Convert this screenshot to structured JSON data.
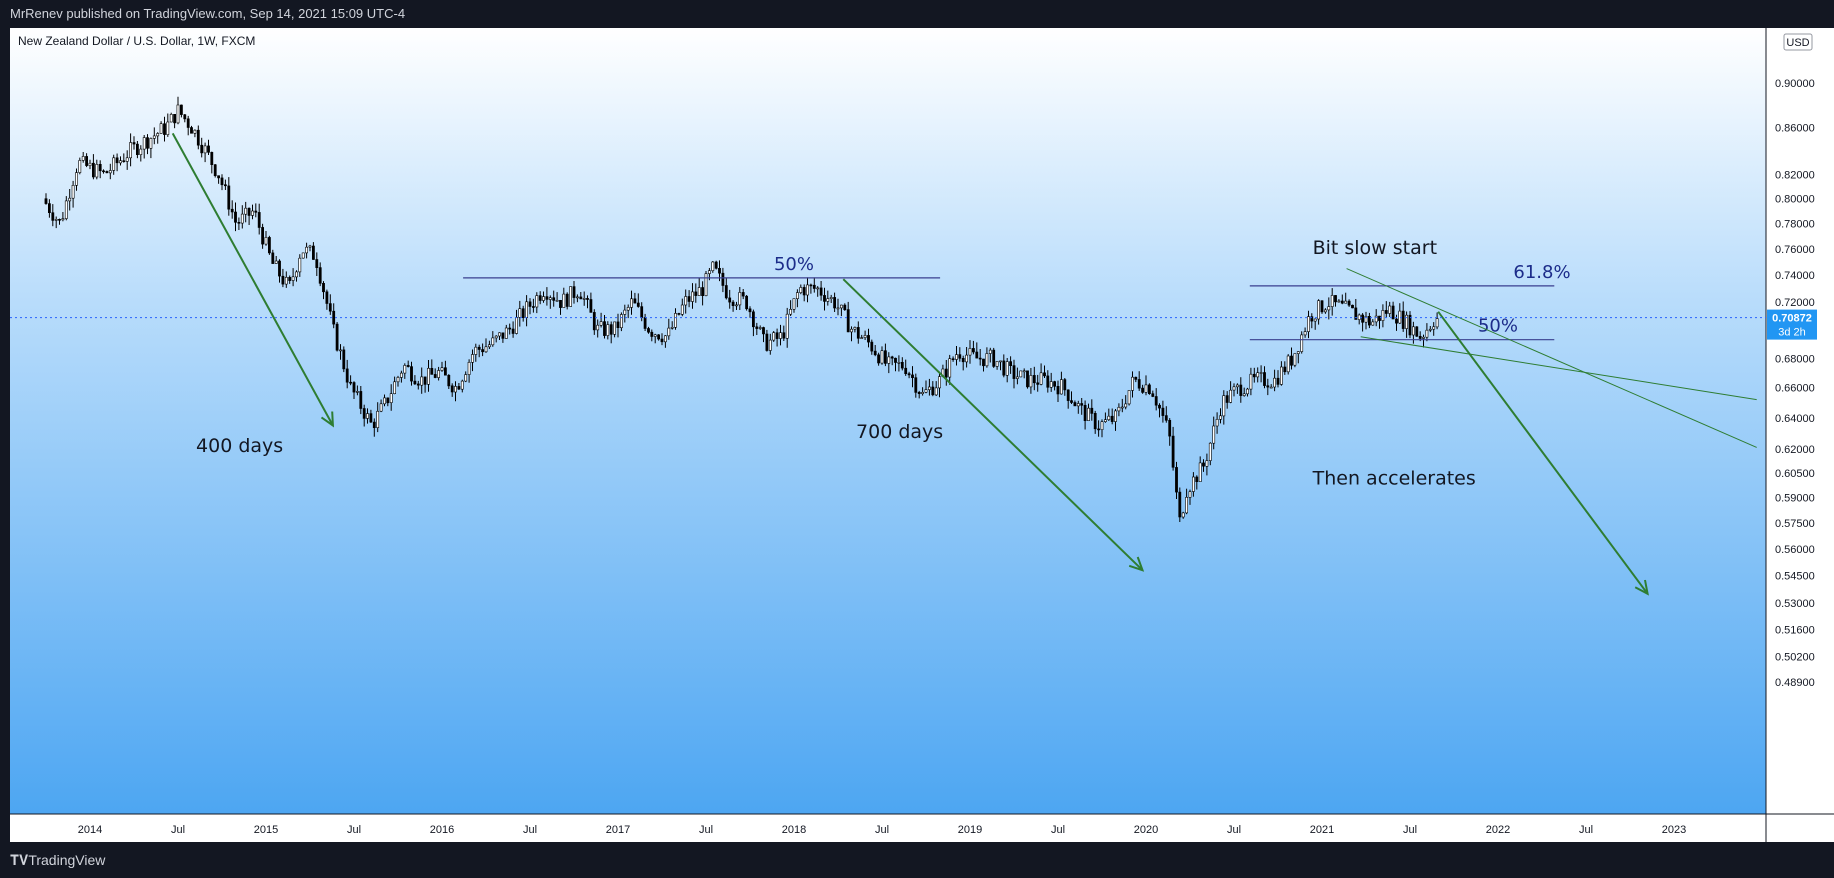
{
  "header": {
    "publisher": "MrRenev published on TradingView.com, Sep 14, 2021 15:09 UTC-4"
  },
  "footer": {
    "brand": "TradingView"
  },
  "chart_data": {
    "type": "candlestick",
    "symbol": "New Zealand Dollar / U.S. Dollar, 1W, FXCM",
    "currency": "USD",
    "price_label": "0.70872",
    "countdown": "3d 2h",
    "last_price": 0.70872,
    "yticks": [
      "0.90000",
      "0.86000",
      "0.82000",
      "0.80000",
      "0.78000",
      "0.76000",
      "0.74000",
      "0.72000",
      "0.68000",
      "0.66000",
      "0.64000",
      "0.62000",
      "0.60500",
      "0.59000",
      "0.57500",
      "0.56000",
      "0.54500",
      "0.53000",
      "0.51600",
      "0.50200",
      "0.48900"
    ],
    "xticks": [
      "2014",
      "Jul",
      "2015",
      "Jul",
      "2016",
      "Jul",
      "2017",
      "Jul",
      "2018",
      "Jul",
      "2019",
      "Jul",
      "2020",
      "Jul",
      "2021",
      "Jul",
      "2022",
      "Jul",
      "2023"
    ],
    "series_path": [
      [
        2013.75,
        0.8
      ],
      [
        2013.85,
        0.78
      ],
      [
        2013.95,
        0.83
      ],
      [
        2014.1,
        0.82
      ],
      [
        2014.25,
        0.84
      ],
      [
        2014.35,
        0.85
      ],
      [
        2014.45,
        0.86
      ],
      [
        2014.52,
        0.875
      ],
      [
        2014.6,
        0.86
      ],
      [
        2014.75,
        0.82
      ],
      [
        2014.85,
        0.78
      ],
      [
        2014.95,
        0.79
      ],
      [
        2015.05,
        0.75
      ],
      [
        2015.15,
        0.73
      ],
      [
        2015.22,
        0.76
      ],
      [
        2015.3,
        0.755
      ],
      [
        2015.4,
        0.7
      ],
      [
        2015.5,
        0.66
      ],
      [
        2015.62,
        0.635
      ],
      [
        2015.7,
        0.65
      ],
      [
        2015.8,
        0.675
      ],
      [
        2015.9,
        0.665
      ],
      [
        2016.0,
        0.67
      ],
      [
        2016.1,
        0.66
      ],
      [
        2016.2,
        0.685
      ],
      [
        2016.3,
        0.69
      ],
      [
        2016.4,
        0.7
      ],
      [
        2016.5,
        0.715
      ],
      [
        2016.6,
        0.73
      ],
      [
        2016.7,
        0.72
      ],
      [
        2016.8,
        0.73
      ],
      [
        2016.9,
        0.7
      ],
      [
        2017.0,
        0.7
      ],
      [
        2017.1,
        0.72
      ],
      [
        2017.2,
        0.7
      ],
      [
        2017.3,
        0.695
      ],
      [
        2017.4,
        0.72
      ],
      [
        2017.5,
        0.73
      ],
      [
        2017.56,
        0.745
      ],
      [
        2017.65,
        0.725
      ],
      [
        2017.75,
        0.72
      ],
      [
        2017.85,
        0.69
      ],
      [
        2017.95,
        0.695
      ],
      [
        2018.05,
        0.73
      ],
      [
        2018.15,
        0.73
      ],
      [
        2018.25,
        0.72
      ],
      [
        2018.35,
        0.7
      ],
      [
        2018.45,
        0.69
      ],
      [
        2018.55,
        0.675
      ],
      [
        2018.65,
        0.675
      ],
      [
        2018.75,
        0.655
      ],
      [
        2018.85,
        0.665
      ],
      [
        2018.95,
        0.685
      ],
      [
        2019.05,
        0.68
      ],
      [
        2019.15,
        0.68
      ],
      [
        2019.25,
        0.67
      ],
      [
        2019.35,
        0.665
      ],
      [
        2019.45,
        0.665
      ],
      [
        2019.55,
        0.66
      ],
      [
        2019.65,
        0.645
      ],
      [
        2019.75,
        0.635
      ],
      [
        2019.85,
        0.64
      ],
      [
        2019.95,
        0.665
      ],
      [
        2020.05,
        0.66
      ],
      [
        2020.15,
        0.63
      ],
      [
        2020.21,
        0.575
      ],
      [
        2020.25,
        0.595
      ],
      [
        2020.35,
        0.61
      ],
      [
        2020.45,
        0.65
      ],
      [
        2020.55,
        0.66
      ],
      [
        2020.65,
        0.665
      ],
      [
        2020.75,
        0.665
      ],
      [
        2020.85,
        0.68
      ],
      [
        2020.95,
        0.71
      ],
      [
        2021.05,
        0.72
      ],
      [
        2021.15,
        0.715
      ],
      [
        2021.3,
        0.705
      ],
      [
        2021.4,
        0.715
      ],
      [
        2021.5,
        0.705
      ],
      [
        2021.58,
        0.695
      ],
      [
        2021.66,
        0.708
      ]
    ],
    "annotations": [
      {
        "text": "400 days",
        "x": 2014.85,
        "y": 0.618
      },
      {
        "text": "700 days",
        "x": 2018.6,
        "y": 0.627
      },
      {
        "text": "Bit slow start",
        "x": 2021.3,
        "y": 0.756
      },
      {
        "text": "Then accelerates",
        "x": 2021.41,
        "y": 0.598
      }
    ],
    "fib_levels": [
      {
        "label": "50%",
        "price": 0.738,
        "x1": 2016.12,
        "x2": 2018.83,
        "label_x": 2018.0
      },
      {
        "label": "61.8%",
        "price": 0.732,
        "x1": 2020.59,
        "x2": 2022.32,
        "label_x": 2022.25
      },
      {
        "label": "50%",
        "price": 0.693,
        "x1": 2020.59,
        "x2": 2022.32,
        "label_x": 2022.0
      }
    ],
    "arrows": [
      {
        "x1": 2014.47,
        "y1": 0.855,
        "x2": 2015.38,
        "y2": 0.635
      },
      {
        "x1": 2018.28,
        "y1": 0.737,
        "x2": 2019.98,
        "y2": 0.548
      },
      {
        "x1": 2021.66,
        "y1": 0.713,
        "x2": 2022.85,
        "y2": 0.535
      }
    ],
    "trendlines": [
      {
        "x1": 2021.14,
        "y1": 0.745,
        "x2": 2023.47,
        "y2": 0.621
      },
      {
        "x1": 2021.22,
        "y1": 0.695,
        "x2": 2023.47,
        "y2": 0.652
      }
    ]
  }
}
